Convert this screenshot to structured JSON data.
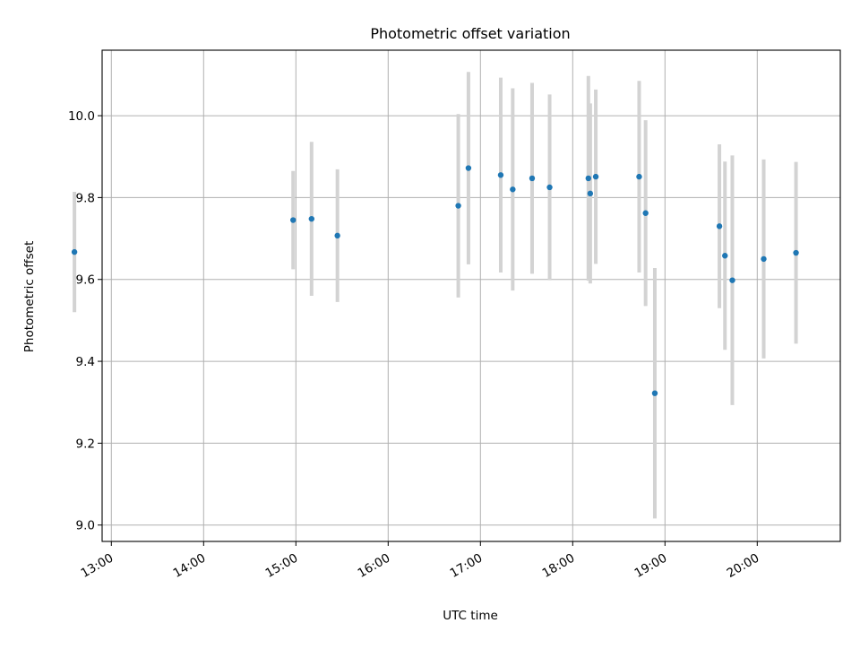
{
  "chart_data": {
    "type": "scatter",
    "title": "Photometric offset variation",
    "xlabel": "UTC time",
    "ylabel": "Photometric offset",
    "x_unit": "UTC time of day (hours)",
    "xlim": [
      12.9,
      20.9
    ],
    "ylim": [
      8.96,
      10.16
    ],
    "grid": true,
    "x_ticks": [
      {
        "value": 13,
        "label": "13:00"
      },
      {
        "value": 14,
        "label": "14:00"
      },
      {
        "value": 15,
        "label": "15:00"
      },
      {
        "value": 16,
        "label": "16:00"
      },
      {
        "value": 17,
        "label": "17:00"
      },
      {
        "value": 18,
        "label": "18:00"
      },
      {
        "value": 19,
        "label": "19:00"
      },
      {
        "value": 20,
        "label": "20:00"
      }
    ],
    "y_ticks": [
      {
        "value": 9.0,
        "label": "9.0"
      },
      {
        "value": 9.2,
        "label": "9.2"
      },
      {
        "value": 9.4,
        "label": "9.4"
      },
      {
        "value": 9.6,
        "label": "9.6"
      },
      {
        "value": 9.8,
        "label": "9.8"
      },
      {
        "value": 10.0,
        "label": "10.0"
      }
    ],
    "point_color": "#1f77b4",
    "errorbar_color": "#d3d3d3",
    "series": [
      {
        "points": [
          {
            "x": 12.6,
            "y": 9.667,
            "err": 0.147
          },
          {
            "x": 14.97,
            "y": 9.745,
            "err": 0.12
          },
          {
            "x": 15.17,
            "y": 9.748,
            "err": 0.188
          },
          {
            "x": 15.45,
            "y": 9.707,
            "err": 0.162
          },
          {
            "x": 16.76,
            "y": 9.78,
            "err": 0.224
          },
          {
            "x": 16.87,
            "y": 9.872,
            "err": 0.235
          },
          {
            "x": 17.22,
            "y": 9.855,
            "err": 0.238
          },
          {
            "x": 17.35,
            "y": 9.82,
            "err": 0.247
          },
          {
            "x": 17.56,
            "y": 9.847,
            "err": 0.233
          },
          {
            "x": 17.75,
            "y": 9.825,
            "err": 0.227
          },
          {
            "x": 18.17,
            "y": 9.847,
            "err": 0.25
          },
          {
            "x": 18.19,
            "y": 9.81,
            "err": 0.22
          },
          {
            "x": 18.25,
            "y": 9.851,
            "err": 0.213
          },
          {
            "x": 18.72,
            "y": 9.851,
            "err": 0.234
          },
          {
            "x": 18.79,
            "y": 9.762,
            "err": 0.227
          },
          {
            "x": 18.89,
            "y": 9.322,
            "err": 0.306
          },
          {
            "x": 19.59,
            "y": 9.73,
            "err": 0.2
          },
          {
            "x": 19.65,
            "y": 9.658,
            "err": 0.23
          },
          {
            "x": 19.73,
            "y": 9.598,
            "err": 0.305
          },
          {
            "x": 20.07,
            "y": 9.65,
            "err": 0.243
          },
          {
            "x": 20.42,
            "y": 9.665,
            "err": 0.222
          }
        ]
      }
    ]
  }
}
